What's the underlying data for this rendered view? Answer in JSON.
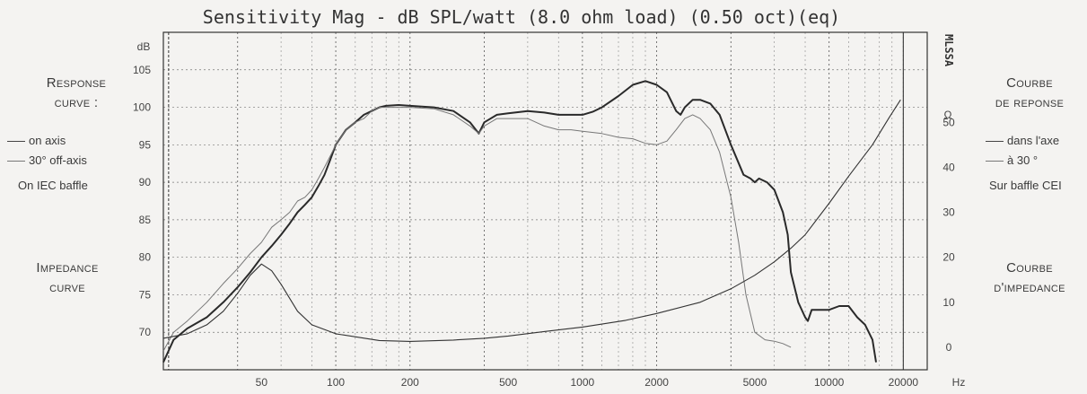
{
  "chart_data": {
    "type": "line",
    "title": "Sensitivity Mag - dB SPL/watt (8.0 ohm load) (0.50 oct)(eq)",
    "left_axis": {
      "unit": "dB",
      "min": 65,
      "max": 110,
      "ticks": [
        70,
        75,
        80,
        85,
        90,
        95,
        100,
        105
      ]
    },
    "right_axis": {
      "unit": "Ω",
      "min": -5,
      "max": 70,
      "ticks": [
        0,
        10,
        20,
        30,
        40,
        50
      ]
    },
    "right_axis_vertical_label": "MLSSA",
    "x_axis": {
      "unit": "Hz",
      "scale": "log",
      "min": 20,
      "max": 25000,
      "tick_labels": [
        50,
        100,
        200,
        500,
        1000,
        2000,
        5000,
        10000,
        20000
      ]
    },
    "grid": true,
    "series": [
      {
        "name": "on axis",
        "axis": "left",
        "points": [
          [
            20,
            66
          ],
          [
            22,
            69
          ],
          [
            25,
            70.5
          ],
          [
            30,
            72
          ],
          [
            35,
            74
          ],
          [
            40,
            76
          ],
          [
            45,
            78
          ],
          [
            50,
            80
          ],
          [
            55,
            81.5
          ],
          [
            60,
            83
          ],
          [
            65,
            84.5
          ],
          [
            70,
            86
          ],
          [
            75,
            87
          ],
          [
            80,
            88
          ],
          [
            85,
            89.5
          ],
          [
            90,
            91
          ],
          [
            95,
            93
          ],
          [
            100,
            95
          ],
          [
            110,
            97
          ],
          [
            120,
            98
          ],
          [
            130,
            99
          ],
          [
            140,
            99.5
          ],
          [
            150,
            100
          ],
          [
            160,
            100.2
          ],
          [
            180,
            100.3
          ],
          [
            200,
            100.2
          ],
          [
            250,
            100
          ],
          [
            300,
            99.5
          ],
          [
            350,
            98
          ],
          [
            380,
            96.5
          ],
          [
            400,
            98
          ],
          [
            450,
            99
          ],
          [
            500,
            99.2
          ],
          [
            600,
            99.5
          ],
          [
            700,
            99.3
          ],
          [
            800,
            99
          ],
          [
            900,
            99
          ],
          [
            1000,
            99
          ],
          [
            1100,
            99.4
          ],
          [
            1200,
            100
          ],
          [
            1400,
            101.5
          ],
          [
            1600,
            103
          ],
          [
            1800,
            103.5
          ],
          [
            2000,
            103
          ],
          [
            2200,
            102
          ],
          [
            2400,
            99.5
          ],
          [
            2500,
            99
          ],
          [
            2600,
            100
          ],
          [
            2800,
            101
          ],
          [
            3000,
            101
          ],
          [
            3300,
            100.5
          ],
          [
            3600,
            99
          ],
          [
            4000,
            95
          ],
          [
            4500,
            91
          ],
          [
            4800,
            90.5
          ],
          [
            5000,
            90
          ],
          [
            5200,
            90.5
          ],
          [
            5600,
            90
          ],
          [
            6000,
            89
          ],
          [
            6500,
            86
          ],
          [
            6800,
            83
          ],
          [
            7000,
            78
          ],
          [
            7500,
            74
          ],
          [
            8000,
            72
          ],
          [
            8200,
            71.5
          ],
          [
            8500,
            73
          ],
          [
            9000,
            73
          ],
          [
            10000,
            73
          ],
          [
            11000,
            73.5
          ],
          [
            12000,
            73.5
          ],
          [
            13000,
            72
          ],
          [
            14000,
            71
          ],
          [
            15000,
            69
          ],
          [
            15500,
            66
          ]
        ]
      },
      {
        "name": "30° off-axis",
        "axis": "left",
        "points": [
          [
            20,
            67.5
          ],
          [
            22,
            70
          ],
          [
            25,
            71.5
          ],
          [
            30,
            74
          ],
          [
            35,
            76.5
          ],
          [
            40,
            78.5
          ],
          [
            45,
            80.5
          ],
          [
            50,
            82
          ],
          [
            55,
            84
          ],
          [
            60,
            85
          ],
          [
            65,
            86
          ],
          [
            70,
            87.5
          ],
          [
            75,
            88
          ],
          [
            80,
            89
          ],
          [
            85,
            90.5
          ],
          [
            90,
            92
          ],
          [
            95,
            93.5
          ],
          [
            100,
            95
          ],
          [
            110,
            97
          ],
          [
            120,
            98
          ],
          [
            130,
            98.5
          ],
          [
            140,
            99.5
          ],
          [
            150,
            100
          ],
          [
            160,
            100
          ],
          [
            180,
            100
          ],
          [
            200,
            100
          ],
          [
            250,
            99.8
          ],
          [
            300,
            99
          ],
          [
            350,
            97.5
          ],
          [
            380,
            96.5
          ],
          [
            400,
            97.5
          ],
          [
            450,
            98.5
          ],
          [
            500,
            98.5
          ],
          [
            600,
            98.5
          ],
          [
            700,
            97.5
          ],
          [
            800,
            97
          ],
          [
            900,
            97
          ],
          [
            1000,
            96.8
          ],
          [
            1200,
            96.5
          ],
          [
            1400,
            96
          ],
          [
            1600,
            95.8
          ],
          [
            1800,
            95.2
          ],
          [
            2000,
            95
          ],
          [
            2200,
            95.5
          ],
          [
            2400,
            97
          ],
          [
            2600,
            98.5
          ],
          [
            2800,
            99
          ],
          [
            3000,
            98.5
          ],
          [
            3300,
            97
          ],
          [
            3600,
            94
          ],
          [
            4000,
            88
          ],
          [
            4300,
            82
          ],
          [
            4600,
            75
          ],
          [
            5000,
            70
          ],
          [
            5500,
            69
          ],
          [
            6000,
            68.8
          ],
          [
            6500,
            68.5
          ],
          [
            7000,
            68
          ]
        ]
      },
      {
        "name": "impedance",
        "axis": "right",
        "points": [
          [
            20,
            2
          ],
          [
            25,
            3
          ],
          [
            30,
            5
          ],
          [
            35,
            8
          ],
          [
            40,
            12
          ],
          [
            45,
            16
          ],
          [
            50,
            18.5
          ],
          [
            55,
            17
          ],
          [
            60,
            14
          ],
          [
            70,
            8
          ],
          [
            80,
            5
          ],
          [
            100,
            3
          ],
          [
            150,
            1.5
          ],
          [
            200,
            1.3
          ],
          [
            300,
            1.6
          ],
          [
            400,
            2
          ],
          [
            500,
            2.5
          ],
          [
            700,
            3.5
          ],
          [
            1000,
            4.5
          ],
          [
            1500,
            6
          ],
          [
            2000,
            7.5
          ],
          [
            3000,
            10
          ],
          [
            4000,
            13
          ],
          [
            5000,
            16
          ],
          [
            6000,
            19
          ],
          [
            7000,
            22
          ],
          [
            8000,
            25
          ],
          [
            10000,
            32
          ],
          [
            12000,
            38
          ],
          [
            15000,
            45
          ],
          [
            17500,
            51
          ],
          [
            19500,
            55
          ]
        ]
      }
    ]
  },
  "left_panel": {
    "response_heading": "Response",
    "response_heading2": "curve :",
    "legend_on_axis": "on axis",
    "legend_off_axis": "30° off-axis",
    "baffle": "On IEC baffle",
    "impedance_heading": "Impedance",
    "impedance_heading2": "curve"
  },
  "right_panel": {
    "response_heading": "Courbe",
    "response_heading2": "de reponse",
    "legend_on_axis": "dans l'axe",
    "legend_off_axis": "à 30 °",
    "baffle": "Sur baffle CEI",
    "impedance_heading": "Courbe",
    "impedance_heading2": "d'impedance"
  }
}
